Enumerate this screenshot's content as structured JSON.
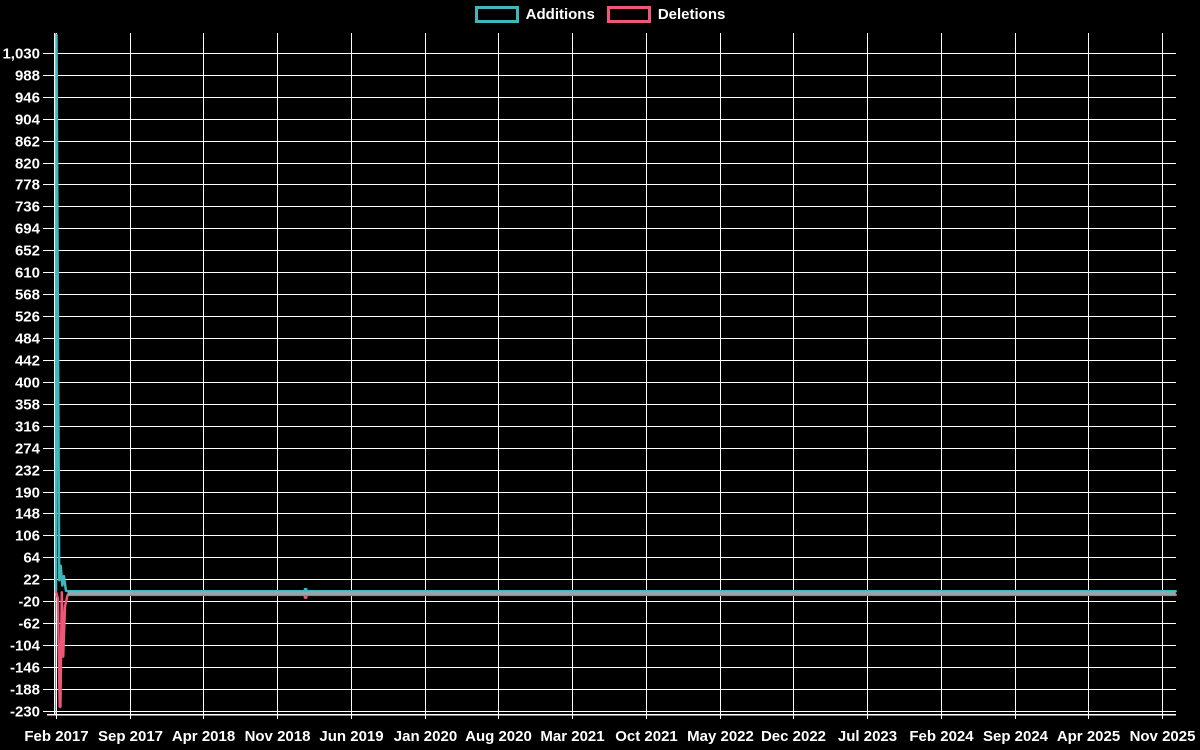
{
  "page": {
    "background": "#000000",
    "text_color": "#ffffff",
    "grid_color": "#ffffff"
  },
  "legend": {
    "items": [
      {
        "label": "Additions",
        "color": "#3EB7BD"
      },
      {
        "label": "Deletions",
        "color": "#EE5775"
      }
    ]
  },
  "chart_data": {
    "type": "line",
    "title": "",
    "legend_position": "top-center",
    "grid": "on",
    "background": "#000000",
    "x_axis": {
      "tick_labels": [
        "Feb 2017",
        "Sep 2017",
        "Apr 2018",
        "Nov 2018",
        "Jun 2019",
        "Jan 2020",
        "Aug 2020",
        "Mar 2021",
        "Oct 2021",
        "May 2022",
        "Dec 2022",
        "Jul 2023",
        "Feb 2024",
        "Sep 2024",
        "Apr 2025",
        "Nov 2025"
      ],
      "months_per_tick": 7,
      "total_months_shown": 106.3
    },
    "y_axis": {
      "display_range": [
        -236,
        1068
      ],
      "ticks": [
        {
          "label": "1,030",
          "value": 1030
        },
        {
          "label": "988",
          "value": 988
        },
        {
          "label": "946",
          "value": 946
        },
        {
          "label": "904",
          "value": 904
        },
        {
          "label": "862",
          "value": 862
        },
        {
          "label": "820",
          "value": 820
        },
        {
          "label": "778",
          "value": 778
        },
        {
          "label": "736",
          "value": 736
        },
        {
          "label": "694",
          "value": 694
        },
        {
          "label": "652",
          "value": 652
        },
        {
          "label": "610",
          "value": 610
        },
        {
          "label": "568",
          "value": 568
        },
        {
          "label": "526",
          "value": 526
        },
        {
          "label": "484",
          "value": 484
        },
        {
          "label": "442",
          "value": 442
        },
        {
          "label": "400",
          "value": 400
        },
        {
          "label": "358",
          "value": 358
        },
        {
          "label": "316",
          "value": 316
        },
        {
          "label": "274",
          "value": 274
        },
        {
          "label": "232",
          "value": 232
        },
        {
          "label": "190",
          "value": 190
        },
        {
          "label": "148",
          "value": 148
        },
        {
          "label": "106",
          "value": 106
        },
        {
          "label": "64",
          "value": 64
        },
        {
          "label": "22",
          "value": 22
        },
        {
          "label": "-20",
          "value": -20
        },
        {
          "label": "-62",
          "value": -62
        },
        {
          "label": "-104",
          "value": -104
        },
        {
          "label": "-146",
          "value": -146
        },
        {
          "label": "-188",
          "value": -188
        },
        {
          "label": "-230",
          "value": -230
        }
      ]
    },
    "series": [
      {
        "name": "Additions",
        "color": "#3EB7BD",
        "points_month_value": [
          [
            0,
            -1
          ],
          [
            0.05,
            1064
          ],
          [
            0.3,
            20
          ],
          [
            0.45,
            48
          ],
          [
            0.6,
            10
          ],
          [
            0.75,
            28
          ],
          [
            0.95,
            0
          ],
          [
            1.2,
            -1
          ],
          [
            106.3,
            -1
          ]
        ]
      },
      {
        "name": "Deletions",
        "color": "#EE5775",
        "points_month_value": [
          [
            0,
            -2
          ],
          [
            0.18,
            -15
          ],
          [
            0.35,
            -222
          ],
          [
            0.42,
            -222
          ],
          [
            0.55,
            -3
          ],
          [
            0.68,
            -126
          ],
          [
            0.85,
            -30
          ],
          [
            1.1,
            -8
          ],
          [
            106.3,
            -8
          ]
        ]
      }
    ],
    "overlap_flatline": {
      "color": "#8FA9B2",
      "from_month": 1.1,
      "to_month": 106.3,
      "value": -4.5
    },
    "markers": [
      {
        "series": "Additions",
        "month": 23.7,
        "value": 2,
        "approx_date": "Jan 2019"
      },
      {
        "series": "Deletions",
        "month": 23.7,
        "value": -12,
        "approx_date": "Jan 2019"
      }
    ]
  }
}
